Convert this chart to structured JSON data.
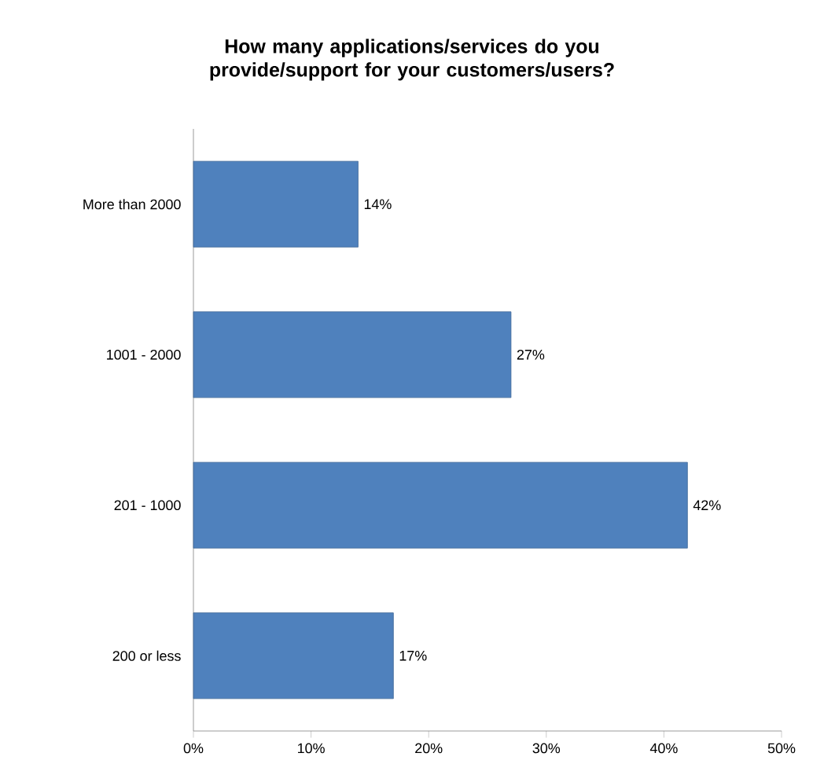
{
  "chart_data": {
    "type": "bar",
    "orientation": "horizontal",
    "title": "How many applications/services do you provide/support for your customers/users?",
    "categories": [
      "More than 2000",
      "1001 - 2000",
      "201 - 1000",
      "200 or less"
    ],
    "values": [
      14,
      27,
      42,
      17
    ],
    "color": "#4f81bd",
    "value_labels": [
      "14%",
      "27%",
      "42%",
      "17%"
    ],
    "xlim": [
      0,
      50
    ],
    "xticks": [
      {
        "value": 0,
        "label": "0%"
      },
      {
        "value": 10,
        "label": "10%"
      },
      {
        "value": 20,
        "label": "20%"
      },
      {
        "value": 30,
        "label": "30%"
      },
      {
        "value": 40,
        "label": "40%"
      },
      {
        "value": 50,
        "label": "50%"
      }
    ]
  }
}
